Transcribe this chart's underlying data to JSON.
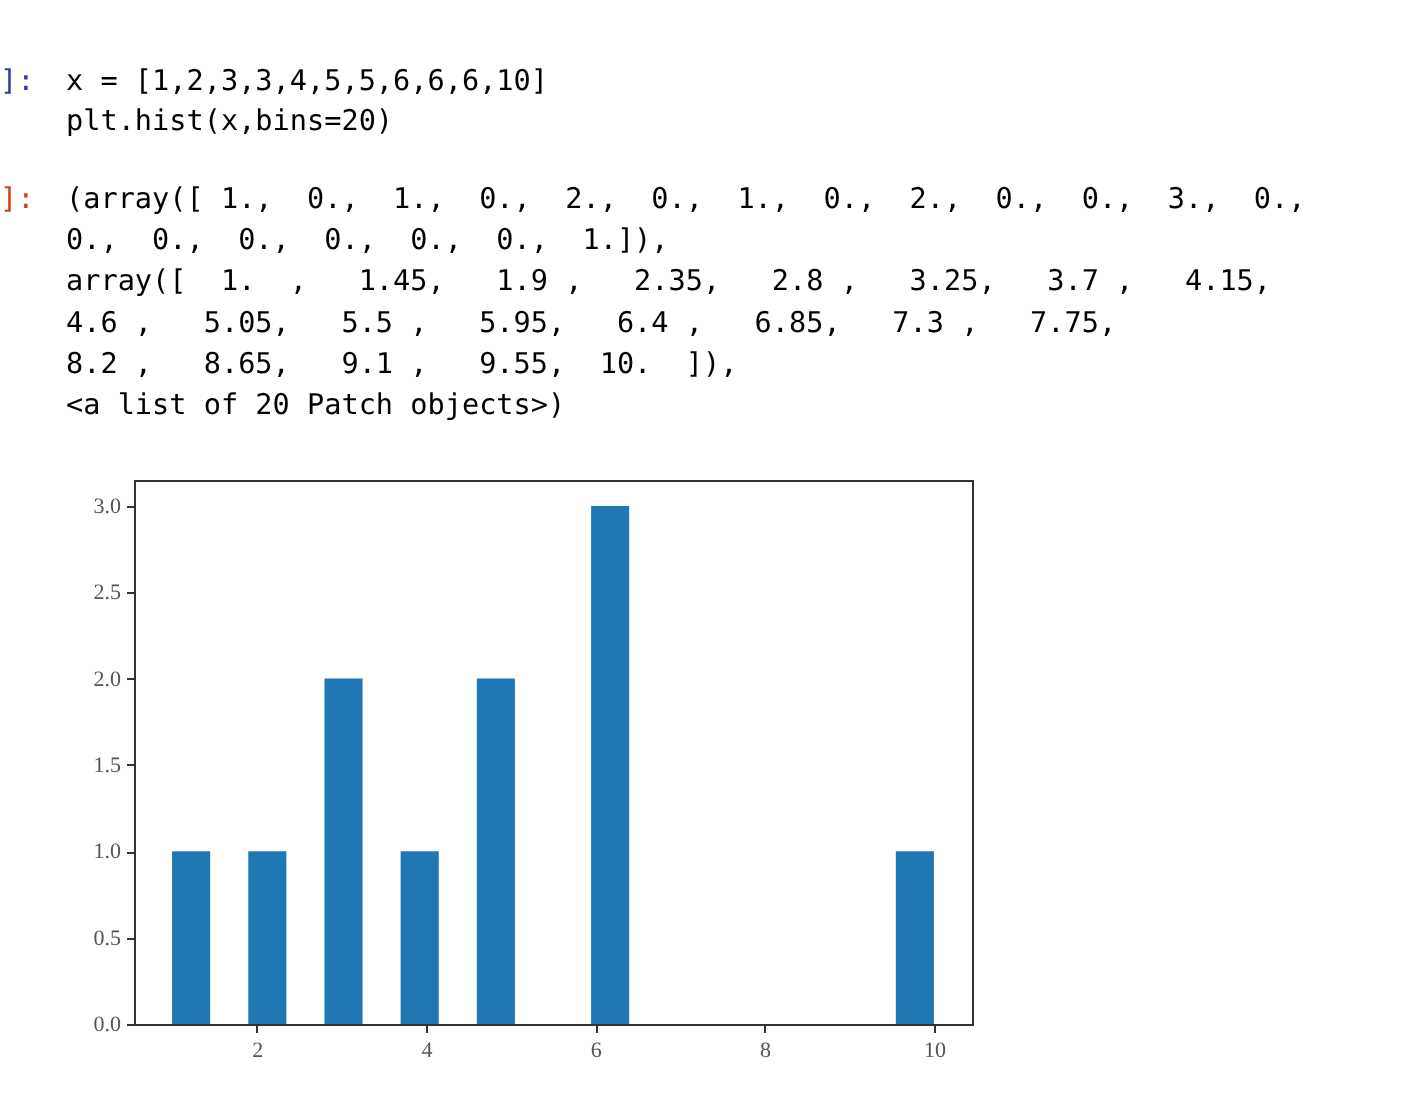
{
  "chart_data": {
    "type": "histogram",
    "bins": [
      1,
      1.45,
      1.9,
      2.35,
      2.8,
      3.25,
      3.7,
      4.15,
      4.6,
      5.05,
      5.5,
      5.95,
      6.4,
      6.85,
      7.3,
      7.75,
      8.2,
      8.65,
      9.1,
      9.55,
      10
    ],
    "values": [
      1,
      0,
      1,
      0,
      2,
      0,
      1,
      0,
      2,
      0,
      0,
      3,
      0,
      0,
      0,
      0,
      0,
      0,
      0,
      1
    ],
    "color": "#1f77b4",
    "xlim": [
      0.55,
      10.45
    ],
    "xticks": [
      2,
      4,
      6,
      8,
      10
    ],
    "ylim": [
      0,
      3.15
    ],
    "yticks": [
      {
        "value": 0,
        "label": "0.0"
      },
      {
        "value": 0.5,
        "label": "0.5"
      },
      {
        "value": 1,
        "label": "1.0"
      },
      {
        "value": 1.5,
        "label": "1.5"
      },
      {
        "value": 2,
        "label": "2.0"
      },
      {
        "value": 2.5,
        "label": "2.5"
      },
      {
        "value": 3,
        "label": "3.0"
      }
    ],
    "grid": false,
    "annotations": [
      "]:",
      "x = [1,2,3,3,4,5,5,6,6,6,10]",
      "plt.hist(x,bins=20)",
      "]:",
      "(array([ 1.,  0.,  1.,  0.,  2.,  0.,  1.,  0.,  2.,  0.,  0.,  3.,  0.,",
      "         0.,  0.,  0.,  0.,  0.,  0.,  1.]),",
      " array([  1.  ,   1.45,   1.9 ,   2.35,   2.8 ,   3.25,   3.7 ,   4.15,",
      "          4.6 ,   5.05,   5.5 ,   5.95,   6.4 ,   6.85,   7.3 ,   7.75,",
      "          8.2 ,   8.65,   9.1 ,   9.55,  10.  ]),",
      " <a list of 20 Patch objects>)"
    ]
  }
}
